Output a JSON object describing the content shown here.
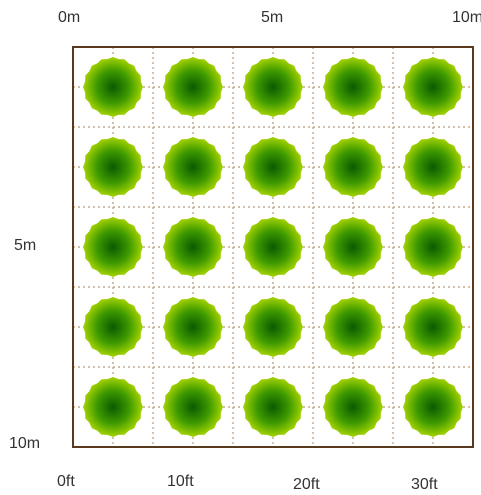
{
  "scale": {
    "top_labels": [
      "0m",
      "5m",
      "10m"
    ],
    "left_labels": [
      "5m",
      "10m"
    ],
    "bottom_labels": [
      "0ft",
      "10ft",
      "20ft",
      "30ft"
    ]
  },
  "grid": {
    "rows": 5,
    "columns": 5
  },
  "colors": {
    "border": "#5a3a1e",
    "grid_line": "#b89a78",
    "plant_center": "#0a5a00",
    "plant_mid": "#3f9a00",
    "plant_edge": "#a6d400",
    "label": "#333333"
  },
  "icons": {
    "plant": "plant-icon"
  }
}
